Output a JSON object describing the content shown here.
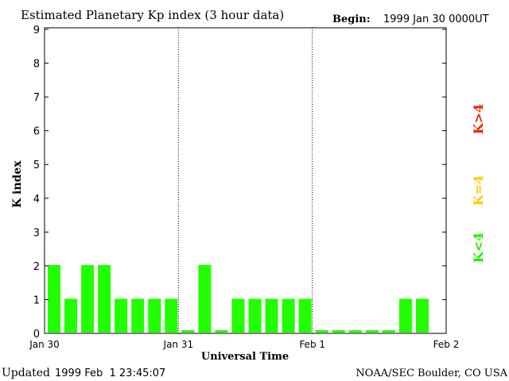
{
  "chart_data": {
    "type": "bar",
    "title": "Estimated Planetary Kp index (3 hour data)",
    "begin_label": "Begin:",
    "begin_value": "1999 Jan 30 0000UT",
    "ylabel": "K index",
    "xlabel": "Universal Time",
    "ylim": [
      0,
      9
    ],
    "y_ticks": [
      "0",
      "1",
      "2",
      "3",
      "4",
      "5",
      "6",
      "7",
      "8",
      "9"
    ],
    "x_ticks": [
      "Jan 30",
      "Jan 31",
      "Feb 1",
      "Feb 2"
    ],
    "values": [
      2,
      1,
      2,
      2,
      1,
      1,
      1,
      1,
      0,
      2,
      0,
      1,
      1,
      1,
      1,
      1,
      0,
      0,
      0,
      0,
      0,
      1,
      1
    ],
    "bar_color": "#22ff00",
    "legend": [
      {
        "label": "K<4",
        "color": "#22ee00"
      },
      {
        "label": "K=4",
        "color": "#ffcc00"
      },
      {
        "label": "K>4",
        "color": "#ee2200"
      }
    ]
  },
  "footer": {
    "updated_label": "Updated",
    "updated_value": "1999 Feb  1 23:45:07",
    "credit": "NOAA/SEC Boulder, CO USA"
  }
}
